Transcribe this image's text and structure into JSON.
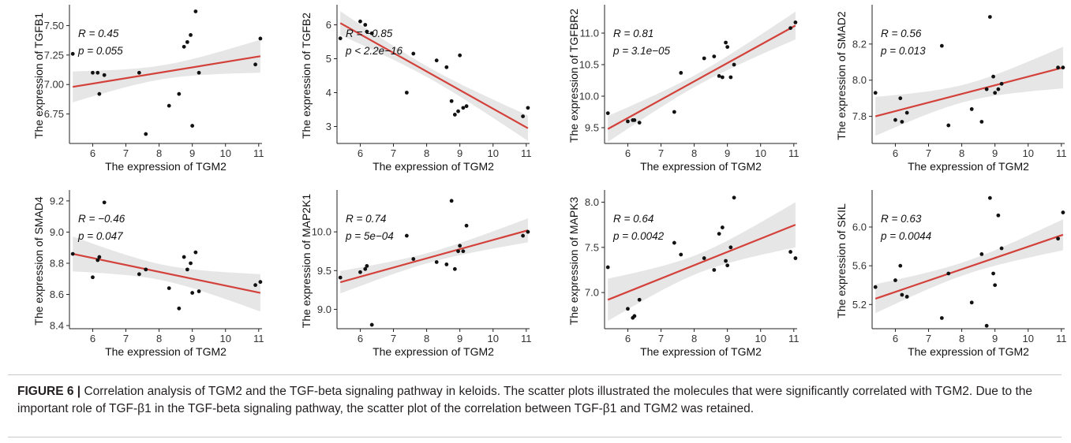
{
  "caption": {
    "lead": "FIGURE 6 |",
    "text": " Correlation analysis of TGM2 and the TGF-beta signaling pathway in keloids. The scatter plots illustrated the molecules that were significantly correlated with TGM2. Due to the important role of TGF-β1 in the TGF-beta signaling pathway, the scatter plot of the correlation between TGF-β1 and TGM2 was retained."
  },
  "colors": {
    "points": "#111111",
    "fit_line": "#d3413b",
    "ci_band": "#e6e6e6",
    "axis": "#222222",
    "text": "#111111"
  },
  "x_values": [
    5.4,
    6.0,
    6.15,
    6.2,
    6.35,
    7.4,
    7.6,
    8.3,
    8.6,
    8.75,
    8.85,
    8.95,
    9.0,
    9.1,
    9.2,
    10.9,
    11.05
  ],
  "chart_data": [
    {
      "type": "scatter",
      "xlabel": "The expression of TGM2",
      "ylabel": "The expression of TGFB1",
      "r_label": "R = 0.45",
      "p_label": "p = 0.055",
      "xlim": [
        5.3,
        11.1
      ],
      "ylim": [
        6.5,
        7.65
      ],
      "xticks": [
        6,
        7,
        8,
        9,
        10,
        11
      ],
      "yticks": [
        6.75,
        7.0,
        7.25,
        7.5
      ],
      "ytick_labels": [
        "6.75",
        "7.00",
        "7.25",
        "7.50"
      ],
      "y": [
        7.26,
        7.1,
        7.1,
        6.92,
        7.08,
        7.1,
        6.58,
        6.82,
        6.92,
        7.32,
        7.36,
        7.42,
        6.65,
        7.62,
        7.1,
        7.17,
        7.39
      ],
      "fit": [
        6.98,
        7.24
      ],
      "ci_lower": [
        6.86,
        7.08
      ],
      "ci_upper": [
        7.1,
        7.4
      ]
    },
    {
      "type": "scatter",
      "xlabel": "The expression of TGM2",
      "ylabel": "The expression of TGFB2",
      "r_label": "R = −0.85",
      "p_label": "p < 2.2e−16",
      "xlim": [
        5.3,
        11.1
      ],
      "ylim": [
        2.5,
        6.5
      ],
      "xticks": [
        6,
        7,
        8,
        9,
        10,
        11
      ],
      "yticks": [
        3,
        4,
        5,
        6
      ],
      "ytick_labels": [
        "3",
        "4",
        "5",
        "6"
      ],
      "y": [
        5.6,
        6.1,
        6.0,
        5.8,
        5.75,
        4.0,
        5.15,
        4.95,
        4.75,
        3.75,
        3.35,
        3.45,
        5.1,
        3.55,
        3.6,
        3.3,
        3.55
      ],
      "fit": [
        6.05,
        2.95
      ],
      "ci_lower": [
        5.7,
        2.55
      ],
      "ci_upper": [
        6.4,
        3.35
      ]
    },
    {
      "type": "scatter",
      "xlabel": "The expression of TGM2",
      "ylabel": "The expression of TGFBR2",
      "r_label": "R = 0.81",
      "p_label": "p = 3.1e−05",
      "xlim": [
        5.3,
        11.1
      ],
      "ylim": [
        9.25,
        11.4
      ],
      "xticks": [
        6,
        7,
        8,
        9,
        10,
        11
      ],
      "yticks": [
        9.5,
        10.0,
        10.5,
        11.0
      ],
      "ytick_labels": [
        "9.5",
        "10.0",
        "10.5",
        "11.0"
      ],
      "y": [
        9.73,
        9.6,
        9.62,
        9.62,
        9.58,
        9.75,
        10.37,
        10.6,
        10.63,
        10.32,
        10.3,
        10.85,
        10.78,
        10.3,
        10.5,
        11.08,
        11.17
      ],
      "fit": [
        9.48,
        11.12
      ],
      "ci_lower": [
        9.26,
        10.9
      ],
      "ci_upper": [
        9.7,
        11.34
      ]
    },
    {
      "type": "scatter",
      "xlabel": "The expression of TGM2",
      "ylabel": "The expression of SMAD2",
      "r_label": "R = 0.56",
      "p_label": "p = 0.013",
      "xlim": [
        5.3,
        11.1
      ],
      "ylim": [
        7.65,
        8.4
      ],
      "xticks": [
        6,
        7,
        8,
        9,
        10,
        11
      ],
      "yticks": [
        7.8,
        8.0,
        8.2
      ],
      "ytick_labels": [
        "7.8",
        "8.0",
        "8.2"
      ],
      "y": [
        7.93,
        7.78,
        7.9,
        7.77,
        7.82,
        8.19,
        7.75,
        7.84,
        7.77,
        7.95,
        8.35,
        8.02,
        7.93,
        7.95,
        7.98,
        8.07,
        8.07
      ],
      "fit": [
        7.8,
        8.07
      ],
      "ci_lower": [
        7.68,
        7.97
      ],
      "ci_upper": [
        7.93,
        8.18
      ]
    },
    {
      "type": "scatter",
      "xlabel": "The expression of TGM2",
      "ylabel": "The expression of SMAD4",
      "r_label": "R = −0.46",
      "p_label": "p = 0.047",
      "xlim": [
        5.3,
        11.1
      ],
      "ylim": [
        8.38,
        9.25
      ],
      "xticks": [
        6,
        7,
        8,
        9,
        10,
        11
      ],
      "yticks": [
        8.4,
        8.6,
        8.8,
        9.0,
        9.2
      ],
      "ytick_labels": [
        "8.4",
        "8.6",
        "8.8",
        "9.0",
        "9.2"
      ],
      "y": [
        8.86,
        8.71,
        8.82,
        8.84,
        9.19,
        8.73,
        8.76,
        8.64,
        8.51,
        8.84,
        8.76,
        8.8,
        8.61,
        8.87,
        8.62,
        8.66,
        8.68
      ],
      "fit": [
        8.86,
        8.61
      ],
      "ci_lower": [
        8.76,
        8.47
      ],
      "ci_upper": [
        8.96,
        8.75
      ]
    },
    {
      "type": "scatter",
      "xlabel": "The expression of TGM2",
      "ylabel": "The expression of MAP2K1",
      "r_label": "R = 0.74",
      "p_label": "p = 5e−04",
      "xlim": [
        5.3,
        11.1
      ],
      "ylim": [
        8.75,
        10.5
      ],
      "xticks": [
        6,
        7,
        8,
        9,
        10,
        11
      ],
      "yticks": [
        9.0,
        9.5,
        10.0
      ],
      "ytick_labels": [
        "9.0",
        "9.5",
        "10.0"
      ],
      "y": [
        9.41,
        9.48,
        9.52,
        9.56,
        8.8,
        9.95,
        9.65,
        9.61,
        9.58,
        10.4,
        9.52,
        9.75,
        9.82,
        9.75,
        10.08,
        9.95,
        10.0
      ],
      "fit": [
        9.35,
        10.02
      ],
      "ci_lower": [
        9.18,
        9.88
      ],
      "ci_upper": [
        9.52,
        10.16
      ]
    },
    {
      "type": "scatter",
      "xlabel": "The expression of TGM2",
      "ylabel": "The expression of MAPK3",
      "r_label": "R = 0.64",
      "p_label": "p = 0.0042",
      "xlim": [
        5.3,
        11.1
      ],
      "ylim": [
        6.6,
        8.1
      ],
      "xticks": [
        6,
        7,
        8,
        9,
        10,
        11
      ],
      "yticks": [
        7.0,
        7.5,
        8.0
      ],
      "ytick_labels": [
        "7.0",
        "7.5",
        "8.0"
      ],
      "y": [
        7.28,
        6.82,
        6.72,
        6.74,
        6.92,
        7.55,
        7.42,
        7.38,
        7.25,
        7.65,
        7.72,
        7.35,
        7.3,
        7.5,
        8.05,
        7.45,
        7.38
      ],
      "fit": [
        6.92,
        7.75
      ],
      "ci_lower": [
        6.67,
        7.5
      ],
      "ci_upper": [
        7.17,
        8.0
      ]
    },
    {
      "type": "scatter",
      "xlabel": "The expression of TGM2",
      "ylabel": "The expression of SKIL",
      "r_label": "R = 0.63",
      "p_label": "p = 0.0044",
      "xlim": [
        5.3,
        11.1
      ],
      "ylim": [
        4.95,
        6.35
      ],
      "xticks": [
        6,
        7,
        8,
        9,
        10,
        11
      ],
      "yticks": [
        5.2,
        5.6,
        6.0
      ],
      "ytick_labels": [
        "5.2",
        "5.6",
        "6.0"
      ],
      "y": [
        5.38,
        5.45,
        5.6,
        5.3,
        5.28,
        5.06,
        5.52,
        5.22,
        5.72,
        4.98,
        6.3,
        5.52,
        5.4,
        6.12,
        5.78,
        5.88,
        6.15
      ],
      "fit": [
        5.26,
        5.92
      ],
      "ci_lower": [
        5.1,
        5.76
      ],
      "ci_upper": [
        5.42,
        6.08
      ]
    }
  ]
}
